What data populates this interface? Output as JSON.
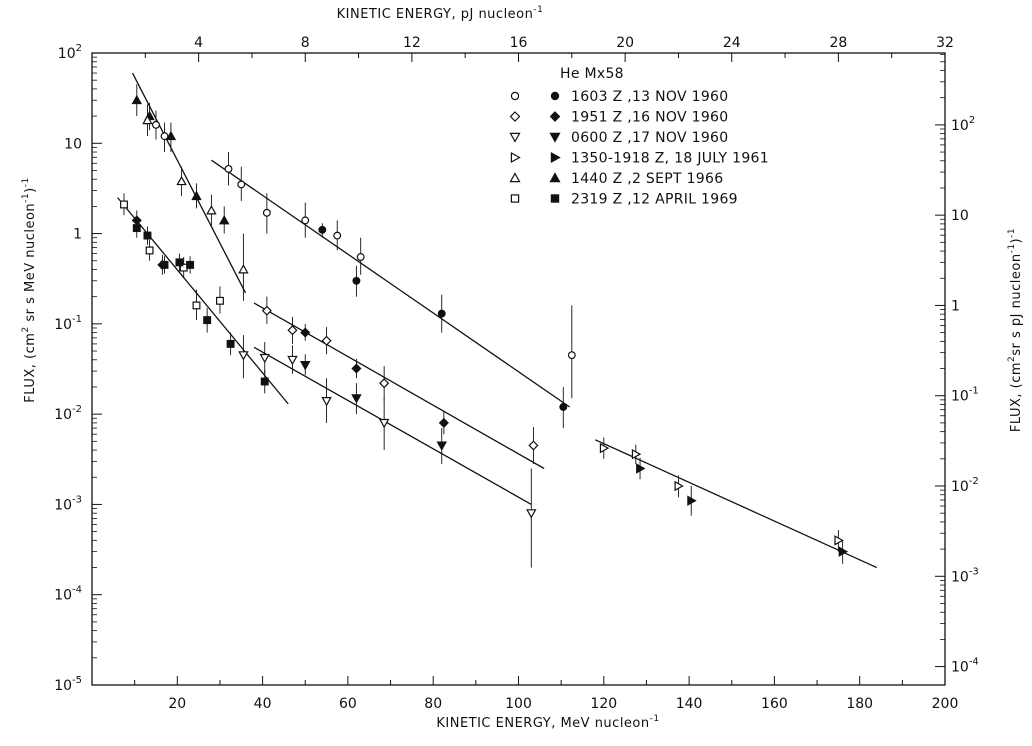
{
  "chart_data": {
    "type": "scatter",
    "title": "",
    "xlabel": "KINETIC ENERGY, MeV nucleon",
    "xlabel_sup": "-1",
    "x2label": "KINETIC ENERGY, pJ nucleon",
    "x2label_sup": "-1",
    "ylabel": "FLUX, (cm",
    "ylabel_mid": " sr s MeV nucleon",
    "ylabel_end": ")",
    "y2label": "FLUX, (cm",
    "y2label_mid": "sr s pJ nucleon",
    "y2label_end": ")",
    "xlim": [
      0,
      200
    ],
    "ylim_log10": [
      -5,
      2
    ],
    "yscale": "log",
    "grid": false,
    "legend_position": "top-center",
    "legend_title": "He Mx58",
    "x_ticks": [
      {
        "v": 20,
        "label": "20"
      },
      {
        "v": 40,
        "label": "40"
      },
      {
        "v": 60,
        "label": "60"
      },
      {
        "v": 80,
        "label": "80"
      },
      {
        "v": 100,
        "label": "100"
      },
      {
        "v": 120,
        "label": "120"
      },
      {
        "v": 140,
        "label": "140"
      },
      {
        "v": 160,
        "label": "160"
      },
      {
        "v": 180,
        "label": "180"
      },
      {
        "v": 200,
        "label": "200"
      }
    ],
    "x2_ticks": [
      {
        "v": 4,
        "label": "4"
      },
      {
        "v": 8,
        "label": "8"
      },
      {
        "v": 12,
        "label": "12"
      },
      {
        "v": 16,
        "label": "16"
      },
      {
        "v": 20,
        "label": "20"
      },
      {
        "v": 24,
        "label": "24"
      },
      {
        "v": 28,
        "label": "28"
      },
      {
        "v": 32,
        "label": "32"
      }
    ],
    "x2_range": [
      0,
      32
    ],
    "y_ticks": [
      {
        "e": 2,
        "mant": "10",
        "exp": "2"
      },
      {
        "e": 1,
        "mant": "10",
        "exp": ""
      },
      {
        "e": 0,
        "mant": "1",
        "exp": ""
      },
      {
        "e": -1,
        "mant": "10",
        "exp": "-1"
      },
      {
        "e": -2,
        "mant": "10",
        "exp": "-2"
      },
      {
        "e": -3,
        "mant": "10",
        "exp": "-3"
      },
      {
        "e": -4,
        "mant": "10",
        "exp": "-4"
      },
      {
        "e": -5,
        "mant": "10",
        "exp": "-5"
      }
    ],
    "y2_ticks": [
      {
        "e": 2,
        "mant": "10",
        "exp": "2"
      },
      {
        "e": 1,
        "mant": "10",
        "exp": ""
      },
      {
        "e": 0,
        "mant": "1",
        "exp": ""
      },
      {
        "e": -1,
        "mant": "10",
        "exp": "-1"
      },
      {
        "e": -2,
        "mant": "10",
        "exp": "-2"
      },
      {
        "e": -3,
        "mant": "10",
        "exp": "-3"
      },
      {
        "e": -4,
        "mant": "10",
        "exp": "-4"
      }
    ],
    "y2_offset_decades": 0.796,
    "legend": [
      {
        "open": "circle",
        "filled": "circle",
        "label": "1603 Z ,13 NOV 1960"
      },
      {
        "open": "diamond",
        "filled": "diamond",
        "label": "1951 Z ,16 NOV 1960"
      },
      {
        "open": "tri-down",
        "filled": "tri-down",
        "label": "0600 Z ,17 NOV 1960"
      },
      {
        "open": "tri-right",
        "filled": "tri-right",
        "label": "1350-1918 Z, 18 JULY 1961"
      },
      {
        "open": "tri-up",
        "filled": "tri-up",
        "label": "1440 Z ,2 SEPT 1966"
      },
      {
        "open": "square",
        "filled": "square",
        "label": "2319 Z ,12 APRIL 1969"
      }
    ],
    "fit_lines": [
      {
        "x": [
          9.5,
          36
        ],
        "y": [
          60,
          0.22
        ]
      },
      {
        "x": [
          28,
          112
        ],
        "y": [
          6.5,
          0.012
        ]
      },
      {
        "x": [
          6,
          46
        ],
        "y": [
          2.5,
          0.013
        ]
      },
      {
        "x": [
          38,
          106
        ],
        "y": [
          0.17,
          0.0025
        ]
      },
      {
        "x": [
          38,
          103
        ],
        "y": [
          0.055,
          0.001
        ]
      },
      {
        "x": [
          118,
          184
        ],
        "y": [
          0.0052,
          0.0002
        ]
      }
    ],
    "series": [
      {
        "name": "1440 Z ,2 SEPT 1966",
        "points": [
          {
            "x": 10.5,
            "y": 30,
            "lo": 20,
            "hi": 45,
            "s": "tri-up",
            "f": true
          },
          {
            "x": 13.5,
            "y": 20,
            "lo": 14,
            "hi": 28,
            "s": "tri-up",
            "f": true
          },
          {
            "x": 18.5,
            "y": 12,
            "lo": 8,
            "hi": 17,
            "s": "tri-up",
            "f": true
          },
          {
            "x": 24.5,
            "y": 2.6,
            "lo": 1.9,
            "hi": 3.6,
            "s": "tri-up",
            "f": true
          },
          {
            "x": 31,
            "y": 1.4,
            "lo": 1.0,
            "hi": 2.0,
            "s": "tri-up",
            "f": true
          },
          {
            "x": 13,
            "y": 18,
            "lo": 12,
            "hi": 27,
            "s": "tri-up",
            "f": false
          },
          {
            "x": 21,
            "y": 3.8,
            "lo": 2.6,
            "hi": 5.5,
            "s": "tri-up",
            "f": false
          },
          {
            "x": 28,
            "y": 1.8,
            "lo": 1.2,
            "hi": 2.7,
            "s": "tri-up",
            "f": false
          },
          {
            "x": 35.5,
            "y": 0.4,
            "lo": 0.18,
            "hi": 1.0,
            "s": "tri-up",
            "f": false
          }
        ]
      },
      {
        "name": "1603 Z ,13 NOV 1960",
        "points": [
          {
            "x": 15,
            "y": 16,
            "lo": 11,
            "hi": 23,
            "s": "circle",
            "f": false
          },
          {
            "x": 17,
            "y": 12,
            "lo": 8,
            "hi": 17,
            "s": "circle",
            "f": false
          },
          {
            "x": 32,
            "y": 5.2,
            "lo": 3.4,
            "hi": 8,
            "s": "circle",
            "f": false
          },
          {
            "x": 35,
            "y": 3.5,
            "lo": 2.3,
            "hi": 5.5,
            "s": "circle",
            "f": false
          },
          {
            "x": 41,
            "y": 1.7,
            "lo": 1.0,
            "hi": 2.8,
            "s": "circle",
            "f": false
          },
          {
            "x": 50,
            "y": 1.4,
            "lo": 0.9,
            "hi": 2.2,
            "s": "circle",
            "f": false
          },
          {
            "x": 57.5,
            "y": 0.95,
            "lo": 0.65,
            "hi": 1.4,
            "s": "circle",
            "f": false
          },
          {
            "x": 63,
            "y": 0.55,
            "lo": 0.35,
            "hi": 0.9,
            "s": "circle",
            "f": false
          },
          {
            "x": 112.5,
            "y": 0.045,
            "lo": 0.015,
            "hi": 0.16,
            "s": "circle",
            "f": false
          },
          {
            "x": 54,
            "y": 1.1,
            "lo": 0.9,
            "hi": 1.3,
            "s": "circle",
            "f": true
          },
          {
            "x": 62,
            "y": 0.3,
            "lo": 0.2,
            "hi": 0.44,
            "s": "circle",
            "f": true
          },
          {
            "x": 82,
            "y": 0.13,
            "lo": 0.08,
            "hi": 0.21,
            "s": "circle",
            "f": true
          },
          {
            "x": 110.5,
            "y": 0.012,
            "lo": 0.007,
            "hi": 0.02,
            "s": "circle",
            "f": true
          }
        ]
      },
      {
        "name": "2319 Z ,12 APRIL 1969",
        "points": [
          {
            "x": 7.5,
            "y": 2.1,
            "lo": 1.6,
            "hi": 2.8,
            "s": "square",
            "f": false
          },
          {
            "x": 13.5,
            "y": 0.65,
            "lo": 0.5,
            "hi": 0.85,
            "s": "square",
            "f": false
          },
          {
            "x": 21.5,
            "y": 0.42,
            "lo": 0.32,
            "hi": 0.55,
            "s": "square",
            "f": false
          },
          {
            "x": 24.5,
            "y": 0.16,
            "lo": 0.11,
            "hi": 0.24,
            "s": "square",
            "f": false
          },
          {
            "x": 30,
            "y": 0.18,
            "lo": 0.13,
            "hi": 0.26,
            "s": "square",
            "f": false
          },
          {
            "x": 10.5,
            "y": 1.15,
            "lo": 0.9,
            "hi": 1.5,
            "s": "square",
            "f": true
          },
          {
            "x": 13,
            "y": 0.95,
            "lo": 0.75,
            "hi": 1.2,
            "s": "square",
            "f": true
          },
          {
            "x": 17,
            "y": 0.45,
            "lo": 0.36,
            "hi": 0.56,
            "s": "square",
            "f": true
          },
          {
            "x": 20.5,
            "y": 0.48,
            "lo": 0.38,
            "hi": 0.6,
            "s": "square",
            "f": true
          },
          {
            "x": 23,
            "y": 0.45,
            "lo": 0.36,
            "hi": 0.56,
            "s": "square",
            "f": true
          },
          {
            "x": 27,
            "y": 0.11,
            "lo": 0.08,
            "hi": 0.15,
            "s": "square",
            "f": true
          },
          {
            "x": 32.5,
            "y": 0.06,
            "lo": 0.045,
            "hi": 0.08,
            "s": "square",
            "f": true
          },
          {
            "x": 40.5,
            "y": 0.023,
            "lo": 0.017,
            "hi": 0.031,
            "s": "square",
            "f": true
          }
        ]
      },
      {
        "name": "1951 Z ,16 NOV 1960",
        "points": [
          {
            "x": 10.5,
            "y": 1.4,
            "lo": 1.1,
            "hi": 1.8,
            "s": "diamond",
            "f": true
          },
          {
            "x": 16.5,
            "y": 0.45,
            "lo": 0.35,
            "hi": 0.58,
            "s": "diamond",
            "f": true
          },
          {
            "x": 50,
            "y": 0.08,
            "lo": 0.065,
            "hi": 0.1,
            "s": "diamond",
            "f": true
          },
          {
            "x": 62,
            "y": 0.032,
            "lo": 0.025,
            "hi": 0.041,
            "s": "diamond",
            "f": true
          },
          {
            "x": 82.5,
            "y": 0.008,
            "lo": 0.006,
            "hi": 0.011,
            "s": "diamond",
            "f": true
          },
          {
            "x": 41,
            "y": 0.14,
            "lo": 0.1,
            "hi": 0.2,
            "s": "diamond",
            "f": false
          },
          {
            "x": 47,
            "y": 0.085,
            "lo": 0.06,
            "hi": 0.12,
            "s": "diamond",
            "f": false
          },
          {
            "x": 55,
            "y": 0.065,
            "lo": 0.046,
            "hi": 0.092,
            "s": "diamond",
            "f": false
          },
          {
            "x": 68.5,
            "y": 0.022,
            "lo": 0.014,
            "hi": 0.034,
            "s": "diamond",
            "f": false
          },
          {
            "x": 103.5,
            "y": 0.0045,
            "lo": 0.0028,
            "hi": 0.0072,
            "s": "diamond",
            "f": false
          }
        ]
      },
      {
        "name": "0600 Z ,17 NOV 1960",
        "points": [
          {
            "x": 35.5,
            "y": 0.045,
            "lo": 0.025,
            "hi": 0.075,
            "s": "tri-down",
            "f": false
          },
          {
            "x": 40.5,
            "y": 0.042,
            "lo": 0.028,
            "hi": 0.063,
            "s": "tri-down",
            "f": false
          },
          {
            "x": 47,
            "y": 0.04,
            "lo": 0.028,
            "hi": 0.058,
            "s": "tri-down",
            "f": false
          },
          {
            "x": 55,
            "y": 0.014,
            "lo": 0.008,
            "hi": 0.025,
            "s": "tri-down",
            "f": false
          },
          {
            "x": 68.5,
            "y": 0.008,
            "lo": 0.004,
            "hi": 0.015,
            "s": "tri-down",
            "f": false
          },
          {
            "x": 103,
            "y": 0.0008,
            "lo": 0.0002,
            "hi": 0.0025,
            "s": "tri-down",
            "f": false
          },
          {
            "x": 50,
            "y": 0.035,
            "lo": 0.027,
            "hi": 0.046,
            "s": "tri-down",
            "f": true
          },
          {
            "x": 62,
            "y": 0.015,
            "lo": 0.01,
            "hi": 0.022,
            "s": "tri-down",
            "f": true
          },
          {
            "x": 82,
            "y": 0.0045,
            "lo": 0.0028,
            "hi": 0.007,
            "s": "tri-down",
            "f": true
          }
        ]
      },
      {
        "name": "1350-1918 Z, 18 JULY 1961",
        "points": [
          {
            "x": 120,
            "y": 0.0042,
            "lo": 0.0032,
            "hi": 0.0055,
            "s": "tri-right",
            "f": false
          },
          {
            "x": 127.5,
            "y": 0.0036,
            "lo": 0.0028,
            "hi": 0.0046,
            "s": "tri-right",
            "f": false
          },
          {
            "x": 137.5,
            "y": 0.0016,
            "lo": 0.0012,
            "hi": 0.0021,
            "s": "tri-right",
            "f": false
          },
          {
            "x": 175,
            "y": 0.0004,
            "lo": 0.0003,
            "hi": 0.00052,
            "s": "tri-right",
            "f": false
          },
          {
            "x": 128.5,
            "y": 0.0025,
            "lo": 0.0019,
            "hi": 0.0033,
            "s": "tri-right",
            "f": true
          },
          {
            "x": 140.5,
            "y": 0.0011,
            "lo": 0.00075,
            "hi": 0.0016,
            "s": "tri-right",
            "f": true
          },
          {
            "x": 176,
            "y": 0.0003,
            "lo": 0.00022,
            "hi": 0.0004,
            "s": "tri-right",
            "f": true
          }
        ]
      }
    ]
  }
}
